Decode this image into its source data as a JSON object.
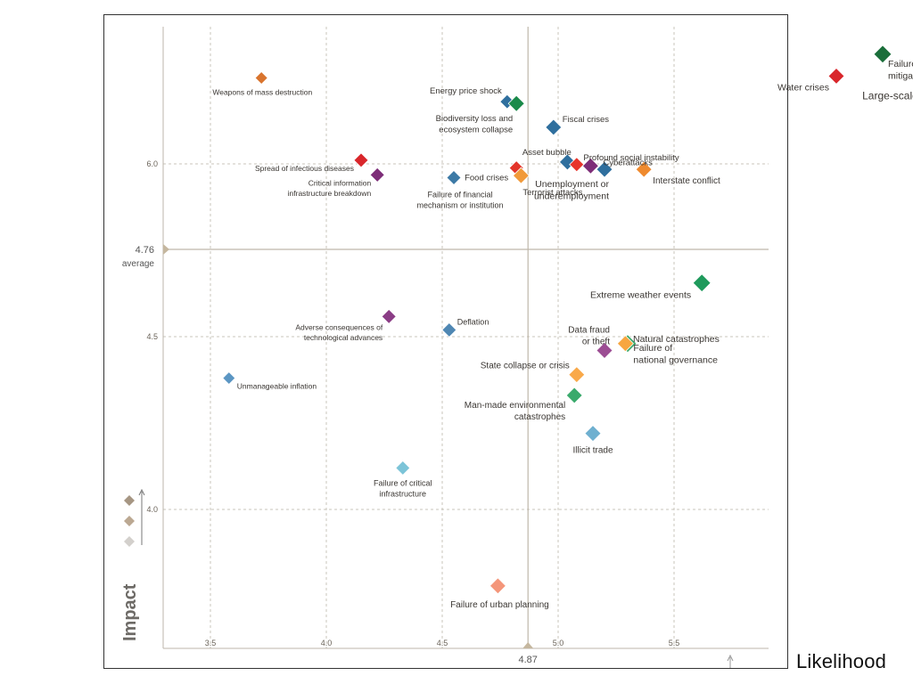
{
  "chart_data": {
    "type": "scatter",
    "xlabel": "Likelihood",
    "ylabel": "Impact",
    "xlim": [
      3.3,
      7.0
    ],
    "ylim": [
      3.6,
      6.75
    ],
    "x_ticks": [
      "3.5",
      "4.0",
      "4.5",
      "5.0",
      "5.5"
    ],
    "y_ticks": [
      "4.0",
      "4.5",
      "6.0"
    ],
    "average_x": {
      "value": 4.87,
      "label": "4.87"
    },
    "average_y": {
      "value": 4.76,
      "label": "4.76",
      "sublabel": "average"
    },
    "grid": true,
    "colors": {
      "economic": "#3a6f9c",
      "environmental": "#1f8a55",
      "geopolitical": "#ef8a2e",
      "societal": "#d9262b",
      "technological": "#7d3a7a"
    },
    "points": [
      {
        "label": "Failure of climate-change mitigation and adaptation",
        "x": 6.4,
        "y": 6.6,
        "category": "environmental",
        "color": "#1a6e3a"
      },
      {
        "label": "Water crises",
        "x": 6.2,
        "y": 6.48,
        "category": "societal",
        "color": "#d9262b"
      },
      {
        "label": "Large-scale involuntary migration",
        "x": 6.82,
        "y": 6.44,
        "category": "societal",
        "color": "#d9262b"
      },
      {
        "label": "Weapons of mass destruction",
        "x": 3.72,
        "y": 6.47,
        "category": "geopolitical",
        "color": "#d9742e"
      },
      {
        "label": "Energy price shock",
        "x": 4.78,
        "y": 6.34,
        "category": "economic",
        "color": "#2f6f9e"
      },
      {
        "label": "Biodiversity loss and ecosystem collapse",
        "x": 4.82,
        "y": 6.33,
        "category": "environmental",
        "color": "#1a8a4a"
      },
      {
        "label": "Fiscal crises",
        "x": 4.98,
        "y": 6.2,
        "category": "economic",
        "color": "#2f6f9e"
      },
      {
        "label": "Spread of infectious diseases",
        "x": 4.15,
        "y": 6.02,
        "category": "societal",
        "color": "#d9262b"
      },
      {
        "label": "Profound social instability",
        "x": 5.04,
        "y": 6.01,
        "category": "societal",
        "color": "#2f6f9e"
      },
      {
        "label": "Asset bubble",
        "x": 5.08,
        "y": 5.99,
        "category": "economic",
        "color": "#e8352b"
      },
      {
        "label": "Cyberattacks",
        "x": 5.14,
        "y": 5.97,
        "category": "technological",
        "color": "#7d2d78"
      },
      {
        "label": "Food crises",
        "x": 4.82,
        "y": 5.94,
        "category": "societal",
        "color": "#e3342a"
      },
      {
        "label": "Unemployment or underemployment",
        "x": 5.2,
        "y": 5.92,
        "category": "economic",
        "color": "#2f6f9e"
      },
      {
        "label": "Interstate conflict",
        "x": 5.37,
        "y": 5.92,
        "category": "geopolitical",
        "color": "#ef8a2e"
      },
      {
        "label": "Critical information infrastructure breakdown",
        "x": 4.22,
        "y": 5.84,
        "category": "technological",
        "color": "#7d2d78"
      },
      {
        "label": "Failure of financial mechanism or institution",
        "x": 4.55,
        "y": 5.8,
        "category": "economic",
        "color": "#3d7aa6"
      },
      {
        "label": "Terrorist attacks",
        "x": 4.84,
        "y": 5.83,
        "category": "geopolitical",
        "color": "#f19a3a"
      },
      {
        "label": "Extreme weather events",
        "x": 5.62,
        "y": 4.66,
        "category": "environmental",
        "color": "#1f9a5c"
      },
      {
        "label": "Adverse consequences of technological advances",
        "x": 4.27,
        "y": 4.56,
        "category": "technological",
        "color": "#8b3d86"
      },
      {
        "label": "Deflation",
        "x": 4.53,
        "y": 4.52,
        "category": "economic",
        "color": "#4f87b3"
      },
      {
        "label": "Natural catastrophes",
        "x": 5.3,
        "y": 4.48,
        "category": "environmental",
        "color": "#3aa869"
      },
      {
        "label": "Data fraud or theft",
        "x": 5.2,
        "y": 4.46,
        "category": "technological",
        "color": "#9c4d93"
      },
      {
        "label": "Failure of national governance",
        "x": 5.29,
        "y": 4.48,
        "category": "geopolitical",
        "color": "#f7a640"
      },
      {
        "label": "State collapse or crisis",
        "x": 5.08,
        "y": 4.39,
        "category": "geopolitical",
        "color": "#f9a94a"
      },
      {
        "label": "Unmanageable inflation",
        "x": 3.58,
        "y": 4.38,
        "category": "economic",
        "color": "#5b96c3"
      },
      {
        "label": "Man-made environmental catastrophes",
        "x": 5.07,
        "y": 4.33,
        "category": "environmental",
        "color": "#3aaa6c"
      },
      {
        "label": "Illicit trade",
        "x": 5.15,
        "y": 4.22,
        "category": "economic",
        "color": "#6fb0d0"
      },
      {
        "label": "Failure of critical infrastructure",
        "x": 4.33,
        "y": 4.12,
        "category": "economic",
        "color": "#7cc4d8"
      },
      {
        "label": "Failure of urban planning",
        "x": 4.74,
        "y": 3.78,
        "category": "societal",
        "color": "#f4967a"
      }
    ],
    "legend_key_colors": [
      "#a69683",
      "#bba892",
      "#d3d0cc"
    ]
  }
}
